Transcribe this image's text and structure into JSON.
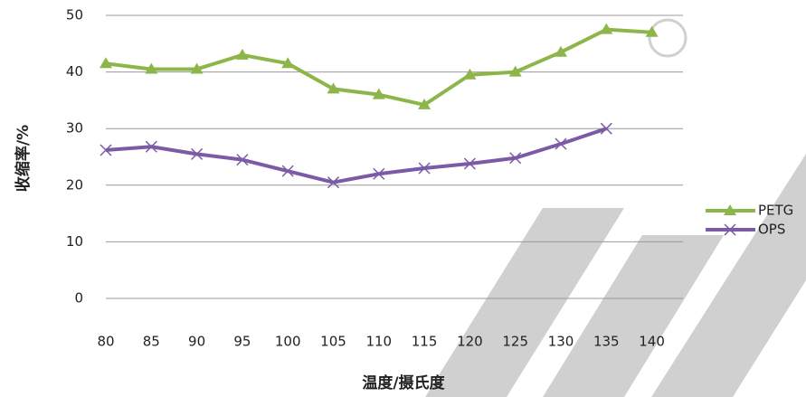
{
  "chart_data": {
    "type": "line",
    "categories": [
      "80",
      "85",
      "90",
      "95",
      "100",
      "105",
      "110",
      "115",
      "120",
      "125",
      "130",
      "135",
      "140"
    ],
    "series": [
      {
        "name": "PETG",
        "color": "#8cb64a",
        "marker": "triangle",
        "values": [
          41.5,
          40.5,
          40.5,
          43,
          41.5,
          37,
          36,
          34.2,
          39.5,
          40,
          43.5,
          47.5,
          47
        ]
      },
      {
        "name": "OPS",
        "color": "#7b5aa6",
        "marker": "x",
        "values": [
          26.2,
          26.8,
          25.5,
          24.5,
          22.5,
          20.5,
          22,
          23,
          23.8,
          24.8,
          27.3,
          30,
          null
        ]
      }
    ],
    "xlabel": "温度/摄氏度",
    "ylabel": "收缩率/%",
    "ylim": [
      0,
      50
    ],
    "yticks": [
      0,
      10,
      20,
      30,
      40,
      50
    ],
    "grid": true,
    "legend": "right"
  }
}
